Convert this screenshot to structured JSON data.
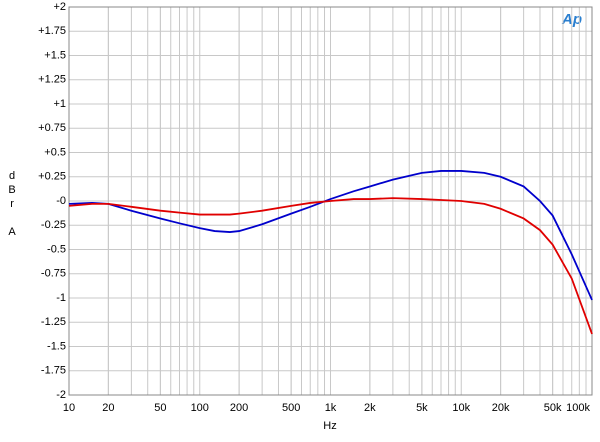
{
  "chart_data": {
    "type": "line",
    "logo": "Ap",
    "x_label": "Hz",
    "y_label": "dBr A",
    "x": [
      10,
      15,
      20,
      30,
      50,
      70,
      100,
      130,
      170,
      200,
      300,
      500,
      700,
      1000,
      1500,
      2000,
      3000,
      5000,
      7000,
      10000,
      15000,
      20000,
      30000,
      40000,
      50000,
      70000,
      100000
    ],
    "series": [
      {
        "color": "#0000cc",
        "values": [
          -0.03,
          -0.02,
          -0.03,
          -0.1,
          -0.18,
          -0.23,
          -0.28,
          -0.31,
          -0.32,
          -0.31,
          -0.24,
          -0.13,
          -0.06,
          0.02,
          0.1,
          0.15,
          0.22,
          0.29,
          0.31,
          0.31,
          0.29,
          0.25,
          0.15,
          0.0,
          -0.15,
          -0.55,
          -1.02
        ]
      },
      {
        "color": "#e00000",
        "values": [
          -0.05,
          -0.03,
          -0.03,
          -0.06,
          -0.1,
          -0.12,
          -0.14,
          -0.14,
          -0.14,
          -0.13,
          -0.1,
          -0.05,
          -0.02,
          0.0,
          0.02,
          0.02,
          0.03,
          0.02,
          0.01,
          0.0,
          -0.03,
          -0.08,
          -0.18,
          -0.3,
          -0.45,
          -0.8,
          -1.37
        ]
      }
    ],
    "log_x": true,
    "grid": true,
    "xlim": [
      10,
      100000
    ],
    "xticks": [
      10,
      20,
      50,
      100,
      200,
      500,
      {
        "value": 1000,
        "label": "1k"
      },
      {
        "value": 2000,
        "label": "2k"
      },
      {
        "value": 5000,
        "label": "5k"
      },
      {
        "value": 10000,
        "label": "10k"
      },
      {
        "value": 20000,
        "label": "20k"
      },
      {
        "value": 50000,
        "label": "50k"
      },
      {
        "value": 100000,
        "label": "100k"
      }
    ],
    "ylim": [
      -2,
      2
    ],
    "yticks": [
      {
        "value": 2,
        "label": "+2"
      },
      {
        "value": 1.75,
        "label": "+1.75"
      },
      {
        "value": 1.5,
        "label": "+1.5"
      },
      {
        "value": 1.25,
        "label": "+1.25"
      },
      {
        "value": 1,
        "label": "+1"
      },
      {
        "value": 0.75,
        "label": "+0.75"
      },
      {
        "value": 0.5,
        "label": "+0.5"
      },
      {
        "value": 0.25,
        "label": "+0.25"
      },
      {
        "value": 0,
        "label": "-0"
      },
      -0.25,
      -0.5,
      -0.75,
      -1,
      -1.25,
      -1.5,
      -1.75,
      -2
    ]
  }
}
